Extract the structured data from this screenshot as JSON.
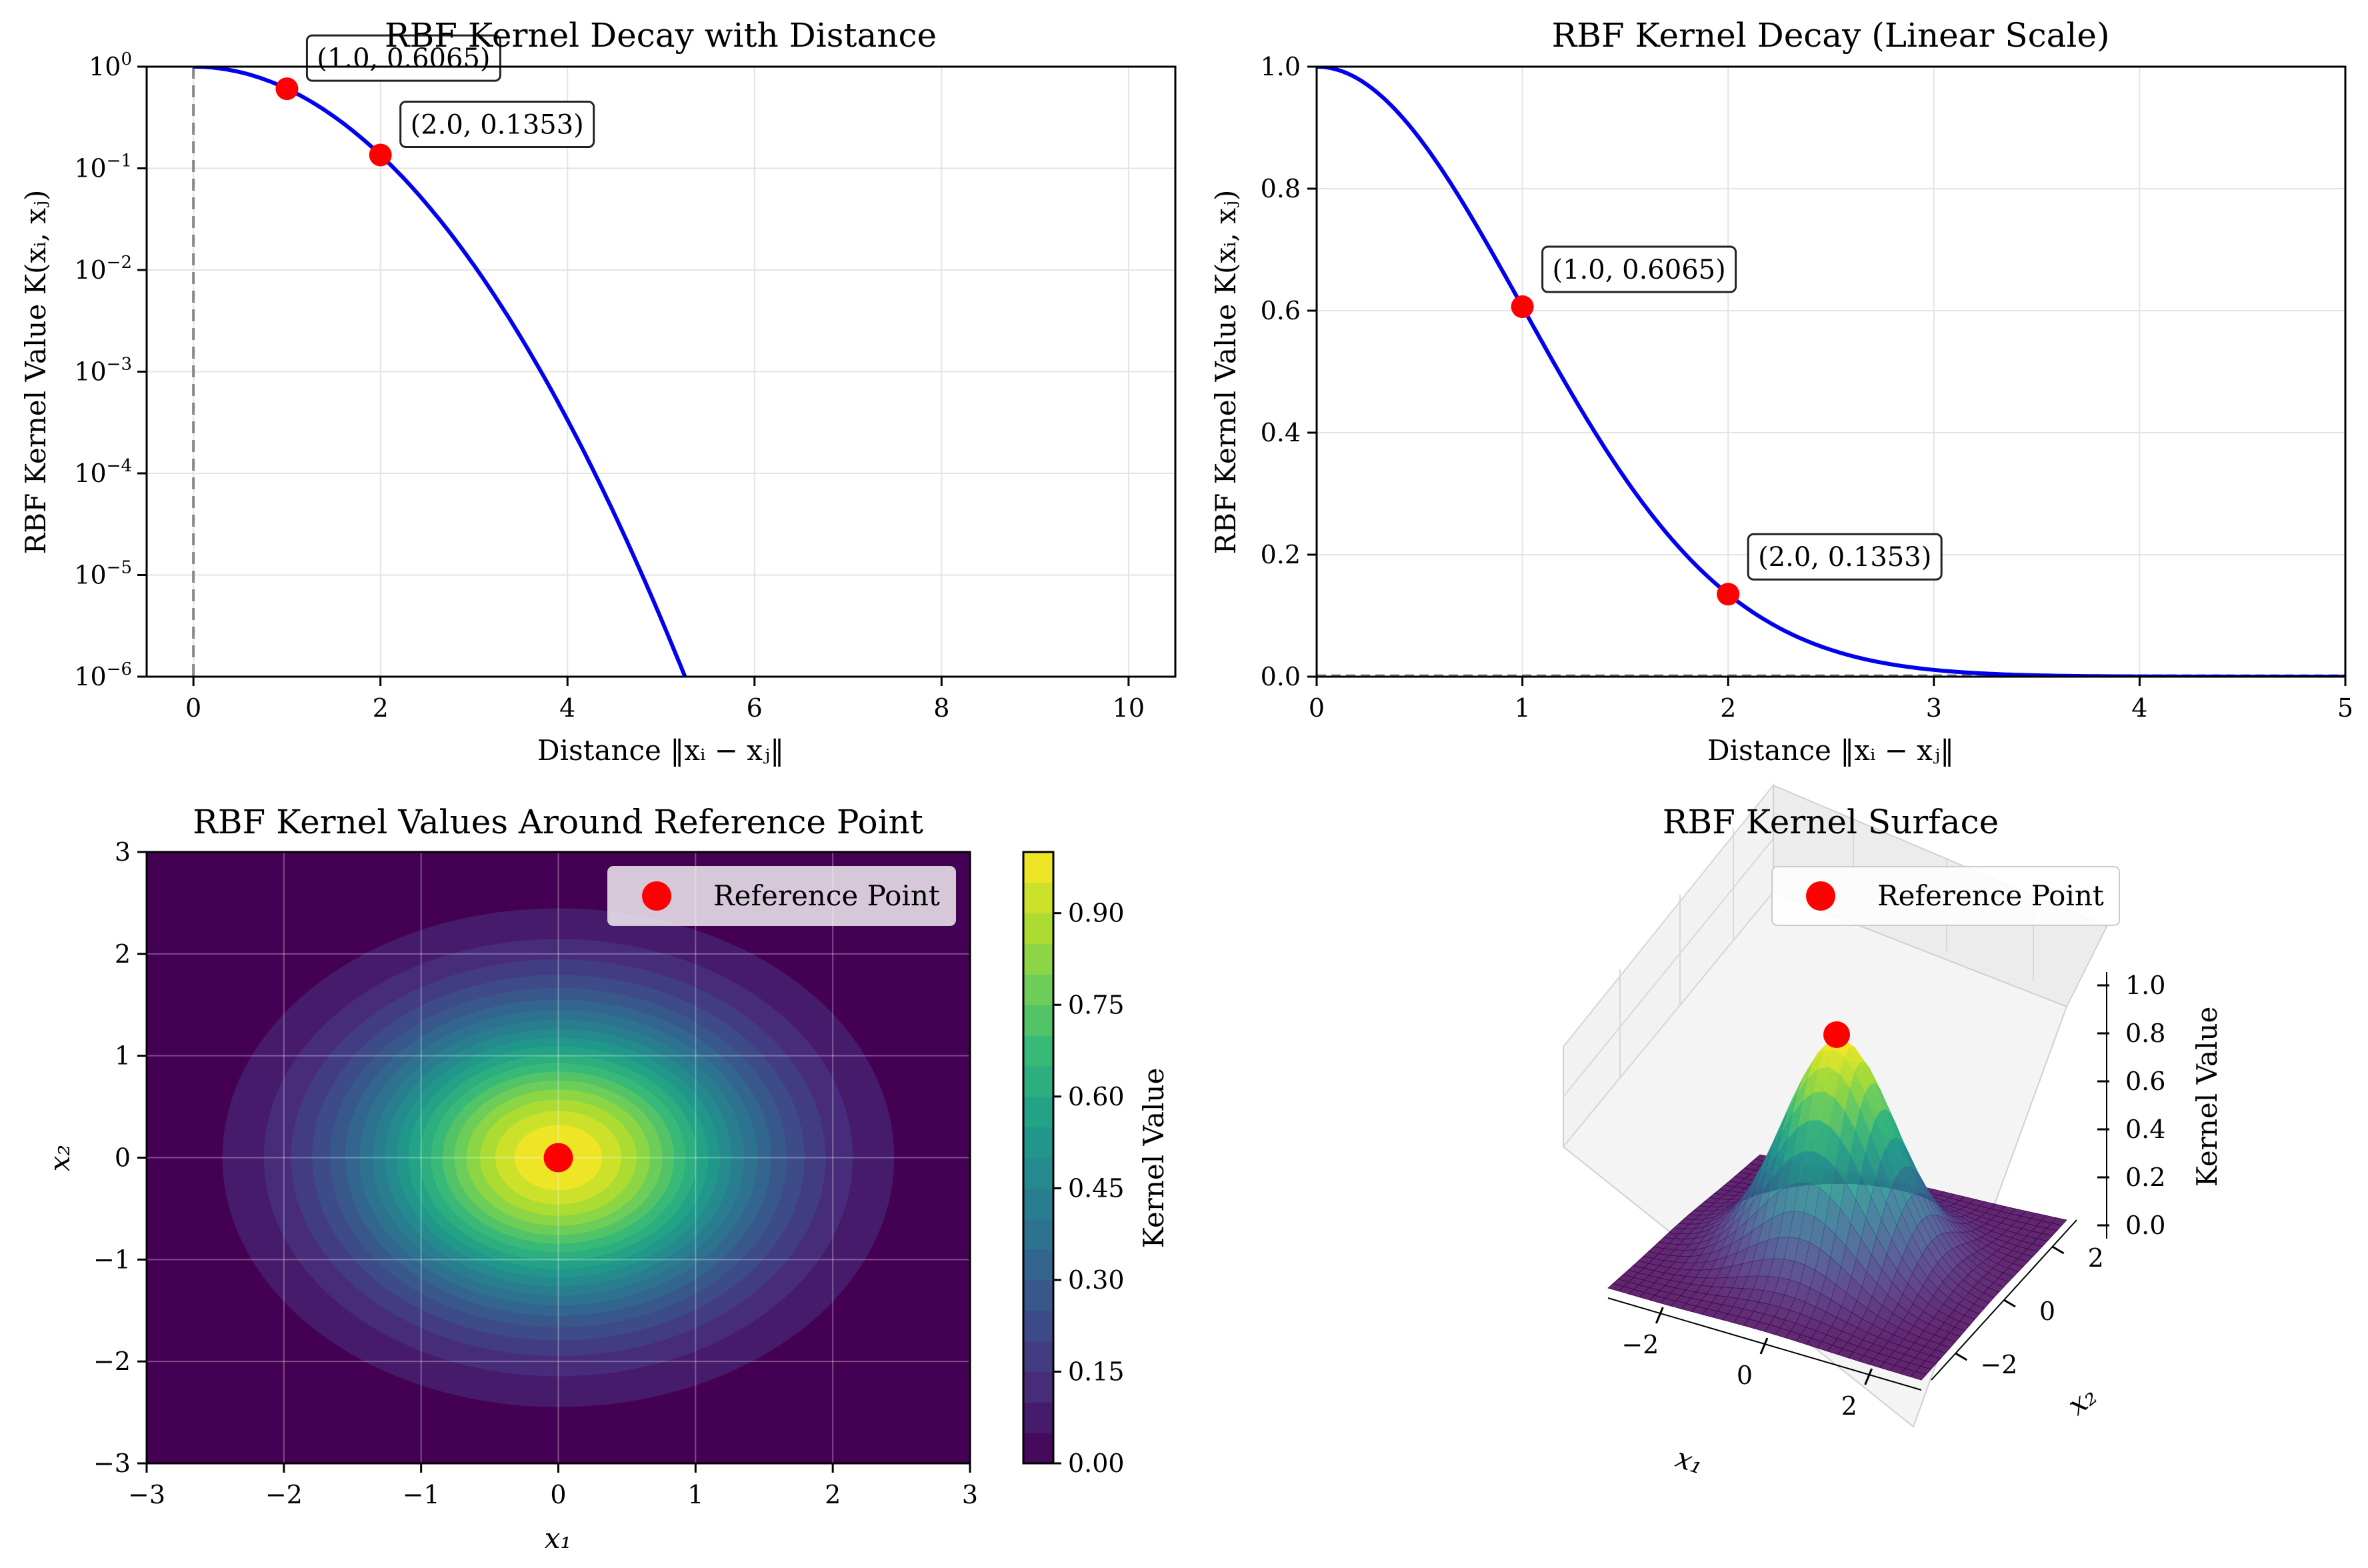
{
  "chart_data": [
    {
      "type": "line",
      "title": "RBF Kernel Decay with Distance",
      "xlabel": "Distance ‖xᵢ − xⱼ‖",
      "ylabel": "RBF Kernel Value K(xᵢ, xⱼ)",
      "yscale": "log",
      "xlim": [
        -0.5,
        10.5
      ],
      "ylim": [
        1e-06,
        1
      ],
      "grid": true,
      "xticks": [
        0,
        2,
        4,
        6,
        8,
        10
      ],
      "yticks": [
        {
          "value": 1,
          "label": "10",
          "exp": "0"
        },
        {
          "value": 0.1,
          "label": "10",
          "exp": "−1"
        },
        {
          "value": 0.01,
          "label": "10",
          "exp": "−2"
        },
        {
          "value": 0.001,
          "label": "10",
          "exp": "−3"
        },
        {
          "value": 0.0001,
          "label": "10",
          "exp": "−4"
        },
        {
          "value": 1e-05,
          "label": "10",
          "exp": "−5"
        },
        {
          "value": 1e-06,
          "label": "10",
          "exp": "−6"
        }
      ],
      "series": [
        {
          "function": "exp(-x^2/2)",
          "x_range": [
            0,
            10
          ],
          "color": "#0000ee"
        }
      ],
      "vline": 0,
      "points": [
        {
          "x": 1.0,
          "y": 0.6065,
          "label": "(1.0, 0.6065)"
        },
        {
          "x": 2.0,
          "y": 0.1353,
          "label": "(2.0, 0.1353)"
        }
      ]
    },
    {
      "type": "line",
      "title": "RBF Kernel Decay (Linear Scale)",
      "xlabel": "Distance ‖xᵢ − xⱼ‖",
      "ylabel": "RBF Kernel Value K(xᵢ, xⱼ)",
      "xlim": [
        0,
        5
      ],
      "ylim": [
        0,
        1
      ],
      "grid": true,
      "xticks": [
        0,
        1,
        2,
        3,
        4,
        5
      ],
      "yticks": [
        0.0,
        0.2,
        0.4,
        0.6,
        0.8,
        1.0
      ],
      "series": [
        {
          "function": "exp(-x^2/2)",
          "x_range": [
            0,
            5
          ],
          "color": "#0000ee"
        }
      ],
      "points": [
        {
          "x": 1.0,
          "y": 0.6065,
          "label": "(1.0, 0.6065)"
        },
        {
          "x": 2.0,
          "y": 0.1353,
          "label": "(2.0, 0.1353)"
        }
      ]
    },
    {
      "type": "heatmap",
      "title": "RBF Kernel Values Around Reference Point",
      "xlabel": "x₁",
      "ylabel": "x₂",
      "xlim": [
        -3,
        3
      ],
      "ylim": [
        -3,
        3
      ],
      "function": "exp(-(x1^2+x2^2)/2)",
      "xticks": [
        -3,
        -2,
        -1,
        0,
        1,
        2,
        3
      ],
      "yticks": [
        -3,
        -2,
        -1,
        0,
        1,
        2,
        3
      ],
      "colorbar": {
        "label": "Kernel Value",
        "ticks": [
          0.0,
          0.15,
          0.3,
          0.45,
          0.6,
          0.75,
          0.9
        ],
        "levels": 20,
        "colormap": "viridis"
      },
      "reference_point": {
        "x": 0,
        "y": 0
      },
      "legend": {
        "label": "Reference Point",
        "position": "top-right"
      }
    },
    {
      "type": "surface",
      "title": "RBF Kernel Surface",
      "xlabel": "x₁",
      "ylabel": "x₂",
      "zlabel": "Kernel Value",
      "function": "exp(-(x1^2+x2^2)/2)",
      "xticks": [
        -2,
        0,
        2
      ],
      "yticks": [
        -2,
        0,
        2
      ],
      "zticks": [
        0.0,
        0.2,
        0.4,
        0.6,
        0.8,
        1.0
      ],
      "reference_point": {
        "x": 0,
        "y": 0,
        "z": 1.0
      },
      "legend": {
        "label": "Reference Point",
        "position": "top"
      }
    }
  ],
  "colors": {
    "curve": "#0000ee",
    "point": "#ff0000",
    "grid": "#e0e0e0"
  }
}
